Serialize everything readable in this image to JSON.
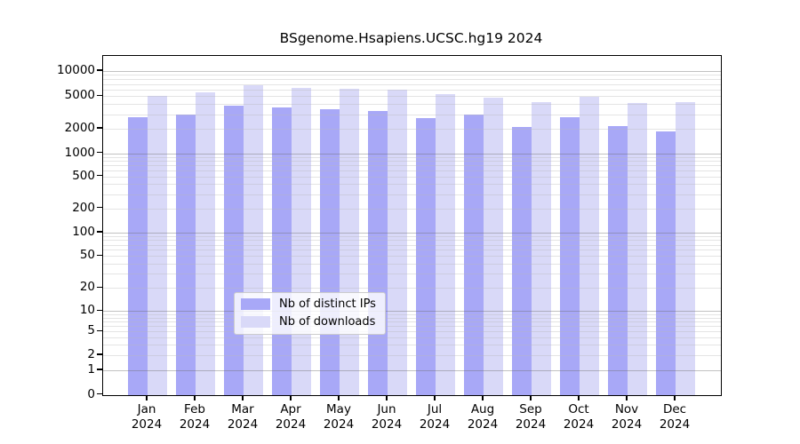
{
  "title": "BSgenome.Hsapiens.UCSC.hg19 2024",
  "legend": {
    "items": [
      {
        "label": "Nb of distinct IPs",
        "color": "#a8a8f7"
      },
      {
        "label": "Nb of downloads",
        "color": "#d9d9f8"
      }
    ]
  },
  "axis": {
    "y_tick_labels": [
      "0",
      "1",
      "2",
      "5",
      "10",
      "20",
      "50",
      "100",
      "200",
      "500",
      "1000",
      "2000",
      "5000",
      "10000"
    ],
    "x_tick_labels": [
      [
        "Jan",
        "2024"
      ],
      [
        "Feb",
        "2024"
      ],
      [
        "Mar",
        "2024"
      ],
      [
        "Apr",
        "2024"
      ],
      [
        "May",
        "2024"
      ],
      [
        "Jun",
        "2024"
      ],
      [
        "Jul",
        "2024"
      ],
      [
        "Aug",
        "2024"
      ],
      [
        "Sep",
        "2024"
      ],
      [
        "Oct",
        "2024"
      ],
      [
        "Nov",
        "2024"
      ],
      [
        "Dec",
        "2024"
      ]
    ]
  },
  "chart_data": {
    "type": "bar",
    "title": "BSgenome.Hsapiens.UCSC.hg19 2024",
    "categories": [
      "Jan 2024",
      "Feb 2024",
      "Mar 2024",
      "Apr 2024",
      "May 2024",
      "Jun 2024",
      "Jul 2024",
      "Aug 2024",
      "Sep 2024",
      "Oct 2024",
      "Nov 2024",
      "Dec 2024"
    ],
    "series": [
      {
        "name": "Nb of distinct IPs",
        "color": "#a8a8f7",
        "values": [
          2750,
          3000,
          3800,
          3670,
          3500,
          3300,
          2700,
          2950,
          2120,
          2770,
          2170,
          1870
        ]
      },
      {
        "name": "Nb of downloads",
        "color": "#d9d9f8",
        "values": [
          5000,
          5600,
          6700,
          6330,
          6100,
          6050,
          5290,
          4830,
          4230,
          4880,
          4160,
          4260
        ]
      }
    ],
    "xlabel": "",
    "ylabel": "",
    "yscale": "pseudo-log with zero baseline",
    "yticks": [
      0,
      1,
      2,
      5,
      10,
      20,
      50,
      100,
      200,
      500,
      1000,
      2000,
      5000,
      10000
    ],
    "ylim": [
      0,
      13000
    ],
    "grid": true,
    "legend_position": "inside bottom-center"
  }
}
